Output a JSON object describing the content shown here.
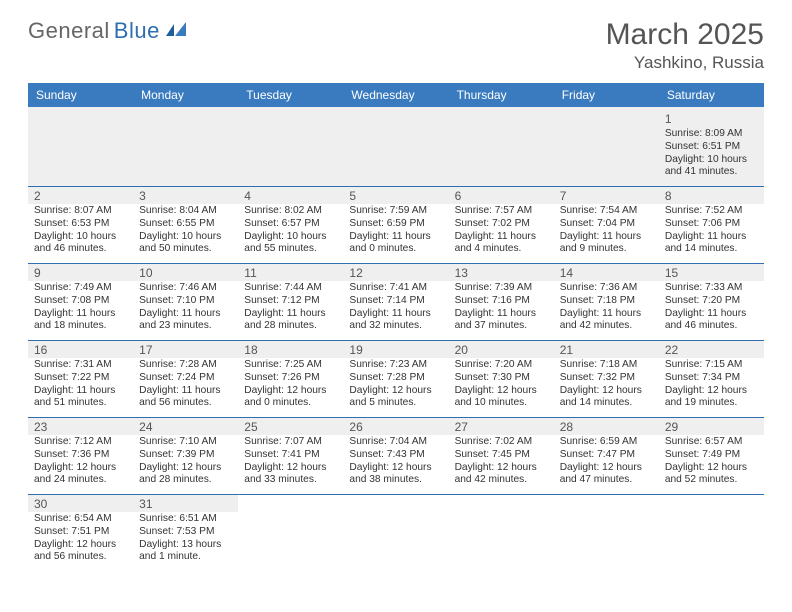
{
  "brand": {
    "part1": "General",
    "part2": "Blue"
  },
  "title": "March 2025",
  "location": "Yashkino, Russia",
  "colors": {
    "header_bg": "#3a7bbf",
    "rule": "#2f6fb0",
    "shade": "#efefef",
    "text": "#333333",
    "title": "#555555"
  },
  "weekdays": [
    "Sunday",
    "Monday",
    "Tuesday",
    "Wednesday",
    "Thursday",
    "Friday",
    "Saturday"
  ],
  "weeks": [
    [
      null,
      null,
      null,
      null,
      null,
      null,
      {
        "n": "1",
        "sr": "Sunrise: 8:09 AM",
        "ss": "Sunset: 6:51 PM",
        "dl": "Daylight: 10 hours and 41 minutes."
      }
    ],
    [
      {
        "n": "2",
        "sr": "Sunrise: 8:07 AM",
        "ss": "Sunset: 6:53 PM",
        "dl": "Daylight: 10 hours and 46 minutes."
      },
      {
        "n": "3",
        "sr": "Sunrise: 8:04 AM",
        "ss": "Sunset: 6:55 PM",
        "dl": "Daylight: 10 hours and 50 minutes."
      },
      {
        "n": "4",
        "sr": "Sunrise: 8:02 AM",
        "ss": "Sunset: 6:57 PM",
        "dl": "Daylight: 10 hours and 55 minutes."
      },
      {
        "n": "5",
        "sr": "Sunrise: 7:59 AM",
        "ss": "Sunset: 6:59 PM",
        "dl": "Daylight: 11 hours and 0 minutes."
      },
      {
        "n": "6",
        "sr": "Sunrise: 7:57 AM",
        "ss": "Sunset: 7:02 PM",
        "dl": "Daylight: 11 hours and 4 minutes."
      },
      {
        "n": "7",
        "sr": "Sunrise: 7:54 AM",
        "ss": "Sunset: 7:04 PM",
        "dl": "Daylight: 11 hours and 9 minutes."
      },
      {
        "n": "8",
        "sr": "Sunrise: 7:52 AM",
        "ss": "Sunset: 7:06 PM",
        "dl": "Daylight: 11 hours and 14 minutes."
      }
    ],
    [
      {
        "n": "9",
        "sr": "Sunrise: 7:49 AM",
        "ss": "Sunset: 7:08 PM",
        "dl": "Daylight: 11 hours and 18 minutes."
      },
      {
        "n": "10",
        "sr": "Sunrise: 7:46 AM",
        "ss": "Sunset: 7:10 PM",
        "dl": "Daylight: 11 hours and 23 minutes."
      },
      {
        "n": "11",
        "sr": "Sunrise: 7:44 AM",
        "ss": "Sunset: 7:12 PM",
        "dl": "Daylight: 11 hours and 28 minutes."
      },
      {
        "n": "12",
        "sr": "Sunrise: 7:41 AM",
        "ss": "Sunset: 7:14 PM",
        "dl": "Daylight: 11 hours and 32 minutes."
      },
      {
        "n": "13",
        "sr": "Sunrise: 7:39 AM",
        "ss": "Sunset: 7:16 PM",
        "dl": "Daylight: 11 hours and 37 minutes."
      },
      {
        "n": "14",
        "sr": "Sunrise: 7:36 AM",
        "ss": "Sunset: 7:18 PM",
        "dl": "Daylight: 11 hours and 42 minutes."
      },
      {
        "n": "15",
        "sr": "Sunrise: 7:33 AM",
        "ss": "Sunset: 7:20 PM",
        "dl": "Daylight: 11 hours and 46 minutes."
      }
    ],
    [
      {
        "n": "16",
        "sr": "Sunrise: 7:31 AM",
        "ss": "Sunset: 7:22 PM",
        "dl": "Daylight: 11 hours and 51 minutes."
      },
      {
        "n": "17",
        "sr": "Sunrise: 7:28 AM",
        "ss": "Sunset: 7:24 PM",
        "dl": "Daylight: 11 hours and 56 minutes."
      },
      {
        "n": "18",
        "sr": "Sunrise: 7:25 AM",
        "ss": "Sunset: 7:26 PM",
        "dl": "Daylight: 12 hours and 0 minutes."
      },
      {
        "n": "19",
        "sr": "Sunrise: 7:23 AM",
        "ss": "Sunset: 7:28 PM",
        "dl": "Daylight: 12 hours and 5 minutes."
      },
      {
        "n": "20",
        "sr": "Sunrise: 7:20 AM",
        "ss": "Sunset: 7:30 PM",
        "dl": "Daylight: 12 hours and 10 minutes."
      },
      {
        "n": "21",
        "sr": "Sunrise: 7:18 AM",
        "ss": "Sunset: 7:32 PM",
        "dl": "Daylight: 12 hours and 14 minutes."
      },
      {
        "n": "22",
        "sr": "Sunrise: 7:15 AM",
        "ss": "Sunset: 7:34 PM",
        "dl": "Daylight: 12 hours and 19 minutes."
      }
    ],
    [
      {
        "n": "23",
        "sr": "Sunrise: 7:12 AM",
        "ss": "Sunset: 7:36 PM",
        "dl": "Daylight: 12 hours and 24 minutes."
      },
      {
        "n": "24",
        "sr": "Sunrise: 7:10 AM",
        "ss": "Sunset: 7:39 PM",
        "dl": "Daylight: 12 hours and 28 minutes."
      },
      {
        "n": "25",
        "sr": "Sunrise: 7:07 AM",
        "ss": "Sunset: 7:41 PM",
        "dl": "Daylight: 12 hours and 33 minutes."
      },
      {
        "n": "26",
        "sr": "Sunrise: 7:04 AM",
        "ss": "Sunset: 7:43 PM",
        "dl": "Daylight: 12 hours and 38 minutes."
      },
      {
        "n": "27",
        "sr": "Sunrise: 7:02 AM",
        "ss": "Sunset: 7:45 PM",
        "dl": "Daylight: 12 hours and 42 minutes."
      },
      {
        "n": "28",
        "sr": "Sunrise: 6:59 AM",
        "ss": "Sunset: 7:47 PM",
        "dl": "Daylight: 12 hours and 47 minutes."
      },
      {
        "n": "29",
        "sr": "Sunrise: 6:57 AM",
        "ss": "Sunset: 7:49 PM",
        "dl": "Daylight: 12 hours and 52 minutes."
      }
    ],
    [
      {
        "n": "30",
        "sr": "Sunrise: 6:54 AM",
        "ss": "Sunset: 7:51 PM",
        "dl": "Daylight: 12 hours and 56 minutes."
      },
      {
        "n": "31",
        "sr": "Sunrise: 6:51 AM",
        "ss": "Sunset: 7:53 PM",
        "dl": "Daylight: 13 hours and 1 minute."
      },
      null,
      null,
      null,
      null,
      null
    ]
  ]
}
